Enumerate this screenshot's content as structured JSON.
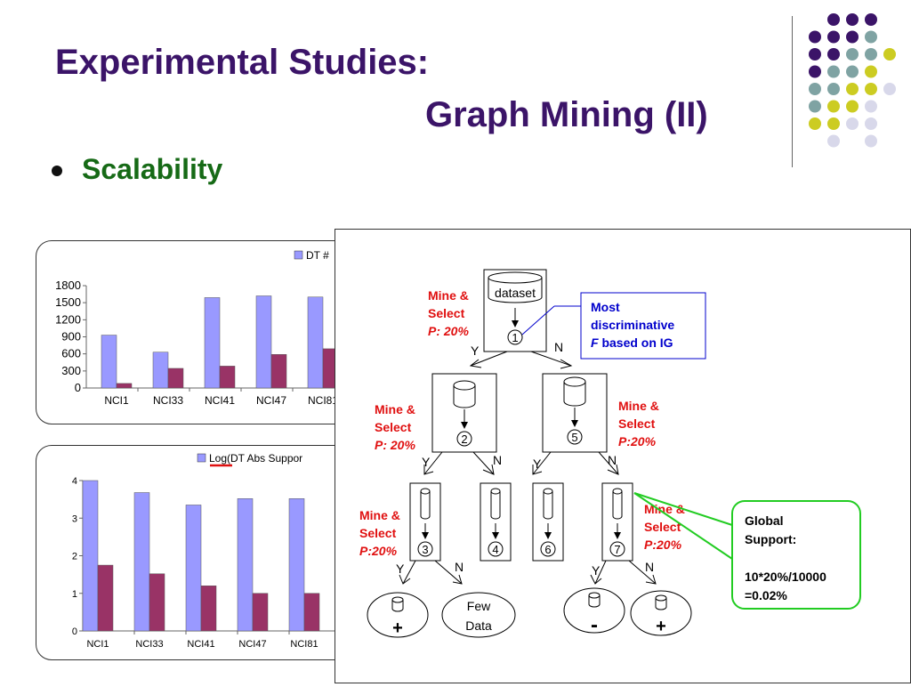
{
  "header": {
    "title_line1": "Experimental Studies:",
    "title_line2": "Graph Mining (II)"
  },
  "bullet": {
    "text": "Scalability"
  },
  "chart_data": [
    {
      "type": "bar",
      "legend_visible": "DT #",
      "categories": [
        "NCI1",
        "NCI33",
        "NCI41",
        "NCI47",
        "NCI81"
      ],
      "ylim": [
        0,
        1800
      ],
      "yticks": [
        "0",
        "300",
        "600",
        "900",
        "1200",
        "1500",
        "1800"
      ],
      "series": [
        {
          "name": "DT #",
          "color": "#9999ff",
          "values": [
            930,
            630,
            1590,
            1620,
            1600
          ]
        },
        {
          "color": "#993366",
          "values": [
            80,
            345,
            385,
            590,
            690
          ]
        }
      ]
    },
    {
      "type": "bar",
      "legend_visible": "Log(DT Abs Suppor",
      "categories": [
        "NCI1",
        "NCI33",
        "NCI41",
        "NCI47",
        "NCI81"
      ],
      "ylim": [
        0,
        4
      ],
      "yticks": [
        "0",
        "1",
        "2",
        "3",
        "4"
      ],
      "series": [
        {
          "name": "Log(DT Abs Suppor",
          "color": "#9999ff",
          "values": [
            4.0,
            3.68,
            3.35,
            3.52,
            3.52
          ]
        },
        {
          "color": "#993366",
          "values": [
            1.75,
            1.52,
            1.2,
            1.0,
            1.0
          ]
        }
      ]
    }
  ],
  "tree": {
    "root_label": "dataset",
    "nodes": [
      "1",
      "2",
      "3",
      "4",
      "5",
      "6",
      "7"
    ],
    "mine_select_20_space": {
      "line1": "Mine &",
      "line2": "Select",
      "line3": "P: 20%"
    },
    "mine_select_20_nospace": {
      "line1": "Mine &",
      "line2": "Select",
      "line3": "P:20%"
    },
    "yes": "Y",
    "no": "N",
    "callout": {
      "line1": "Most",
      "line2": "discriminative",
      "line3_italic": "F",
      "line3_rest": " based on IG"
    },
    "leaves": {
      "plus": "+",
      "minus": "-",
      "few_line1": "Few",
      "few_line2": "Data"
    },
    "global_support": {
      "line1": "Global",
      "line2": "Support:",
      "line3": "10*20%/10000",
      "line4": "=0.02%"
    }
  },
  "colors": {
    "title": "#3b1468",
    "bullet": "#166a16",
    "mine_select": "#e01010",
    "callout_text": "#0000cc",
    "global_border": "#22cc22",
    "dot_purple": "#3b1468",
    "dot_teal": "#7fa3a3",
    "dot_yellow": "#cccc22",
    "dot_lavender": "#d8d8ea"
  }
}
